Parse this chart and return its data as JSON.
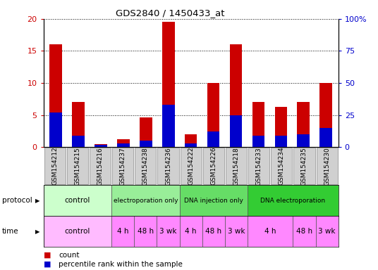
{
  "title": "GDS2840 / 1450433_at",
  "samples": [
    "GSM154212",
    "GSM154215",
    "GSM154216",
    "GSM154237",
    "GSM154238",
    "GSM154236",
    "GSM154222",
    "GSM154226",
    "GSM154218",
    "GSM154233",
    "GSM154234",
    "GSM154235",
    "GSM154230"
  ],
  "count_values": [
    16,
    7,
    0.5,
    1.2,
    4.6,
    19.5,
    2.0,
    10,
    16,
    7,
    6.3,
    7,
    10
  ],
  "percentile_values": [
    27,
    9,
    2,
    3,
    5,
    33,
    3,
    12,
    25,
    9,
    9,
    10,
    15
  ],
  "ylim_left": [
    0,
    20
  ],
  "ylim_right": [
    0,
    100
  ],
  "yticks_left": [
    0,
    5,
    10,
    15,
    20
  ],
  "yticks_right": [
    0,
    25,
    50,
    75,
    100
  ],
  "ytick_labels_right": [
    "0",
    "25",
    "50",
    "75",
    "100%"
  ],
  "bar_color_count": "#cc0000",
  "bar_color_pct": "#0000cc",
  "bg_color": "#ffffff",
  "protocol_groups": [
    {
      "label": "control",
      "start": 0,
      "end": 3,
      "color": "#ccffcc"
    },
    {
      "label": "electroporation only",
      "start": 3,
      "end": 6,
      "color": "#99ee99"
    },
    {
      "label": "DNA injection only",
      "start": 6,
      "end": 9,
      "color": "#66dd66"
    },
    {
      "label": "DNA electroporation",
      "start": 9,
      "end": 13,
      "color": "#33cc33"
    }
  ],
  "time_cells": [
    {
      "label": "control",
      "start": 0,
      "end": 3,
      "color": "#ffbbff"
    },
    {
      "label": "4 h",
      "start": 3,
      "end": 4,
      "color": "#ff88ff"
    },
    {
      "label": "48 h",
      "start": 4,
      "end": 5,
      "color": "#ff88ff"
    },
    {
      "label": "3 wk",
      "start": 5,
      "end": 6,
      "color": "#ff88ff"
    },
    {
      "label": "4 h",
      "start": 6,
      "end": 7,
      "color": "#ff88ff"
    },
    {
      "label": "48 h",
      "start": 7,
      "end": 8,
      "color": "#ff88ff"
    },
    {
      "label": "3 wk",
      "start": 8,
      "end": 9,
      "color": "#ff88ff"
    },
    {
      "label": "4 h",
      "start": 9,
      "end": 11,
      "color": "#ff88ff"
    },
    {
      "label": "48 h",
      "start": 11,
      "end": 12,
      "color": "#ff88ff"
    },
    {
      "label": "3 wk",
      "start": 12,
      "end": 13,
      "color": "#ff88ff"
    }
  ],
  "legend_count_label": "count",
  "legend_pct_label": "percentile rank within the sample"
}
